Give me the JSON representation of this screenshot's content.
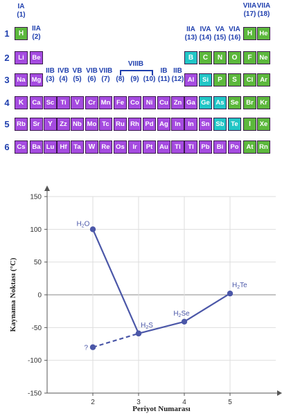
{
  "periodic_table": {
    "group_labels": [
      {
        "id": "g1",
        "roman": "IA",
        "num": "(1)"
      },
      {
        "id": "g2",
        "roman": "IIA",
        "num": "(2)"
      },
      {
        "id": "g3",
        "roman": "IIB",
        "num": "(3)"
      },
      {
        "id": "g4",
        "roman": "IVB",
        "num": "(4)"
      },
      {
        "id": "g5",
        "roman": "VB",
        "num": "(5)"
      },
      {
        "id": "g6",
        "roman": "VIB",
        "num": "(6)"
      },
      {
        "id": "g7",
        "roman": "VIIB",
        "num": "(7)"
      },
      {
        "id": "g8",
        "roman": "",
        "num": "(8)"
      },
      {
        "id": "g9",
        "roman": "",
        "num": "(9)"
      },
      {
        "id": "g10",
        "roman": "",
        "num": "(10)"
      },
      {
        "id": "g11",
        "roman": "IB",
        "num": "(11)"
      },
      {
        "id": "g12",
        "roman": "IIB",
        "num": "(12)"
      },
      {
        "id": "g13",
        "roman": "IIA",
        "num": "(13)"
      },
      {
        "id": "g14",
        "roman": "IVA",
        "num": "(14)"
      },
      {
        "id": "g15",
        "roman": "VA",
        "num": "(15)"
      },
      {
        "id": "g16",
        "roman": "VIA",
        "num": "(16)"
      },
      {
        "id": "g17",
        "roman": "VIIA",
        "num": "(17)"
      },
      {
        "id": "g18",
        "roman": "VIIA",
        "num": "(18)"
      }
    ],
    "viii_label": "VIIIB",
    "periods": [
      "1",
      "2",
      "3",
      "4",
      "5",
      "6"
    ],
    "rows": [
      [
        [
          "H",
          "nonmetal"
        ],
        null,
        null,
        null,
        null,
        null,
        null,
        null,
        null,
        null,
        null,
        null,
        null,
        null,
        null,
        null,
        [
          "H",
          "nonmetal"
        ],
        [
          "He",
          "nonmetal"
        ]
      ],
      [
        [
          "Li",
          "metal"
        ],
        [
          "Be",
          "metal"
        ],
        null,
        null,
        null,
        null,
        null,
        null,
        null,
        null,
        null,
        null,
        [
          "B",
          "metalloid"
        ],
        [
          "C",
          "nonmetal"
        ],
        [
          "N",
          "nonmetal"
        ],
        [
          "O",
          "nonmetal"
        ],
        [
          "F",
          "nonmetal"
        ],
        [
          "Ne",
          "nonmetal"
        ]
      ],
      [
        [
          "Na",
          "metal"
        ],
        [
          "Mg",
          "metal"
        ],
        null,
        null,
        null,
        null,
        null,
        null,
        null,
        null,
        null,
        null,
        [
          "Al",
          "metal"
        ],
        [
          "Si",
          "metalloid"
        ],
        [
          "P",
          "nonmetal"
        ],
        [
          "S",
          "nonmetal"
        ],
        [
          "Cl",
          "nonmetal"
        ],
        [
          "Ar",
          "nonmetal"
        ]
      ],
      [
        [
          "K",
          "metal"
        ],
        [
          "Ca",
          "metal"
        ],
        [
          "Sc",
          "metal"
        ],
        [
          "Ti",
          "metal"
        ],
        [
          "V",
          "metal"
        ],
        [
          "Cr",
          "metal"
        ],
        [
          "Mn",
          "metal"
        ],
        [
          "Fe",
          "metal"
        ],
        [
          "Co",
          "metal"
        ],
        [
          "Ni",
          "metal"
        ],
        [
          "Cu",
          "metal"
        ],
        [
          "Zn",
          "metal"
        ],
        [
          "Ga",
          "metal"
        ],
        [
          "Ge",
          "metalloid"
        ],
        [
          "As",
          "metalloid"
        ],
        [
          "Se",
          "nonmetal"
        ],
        [
          "Br",
          "nonmetal"
        ],
        [
          "Kr",
          "nonmetal"
        ]
      ],
      [
        [
          "Rb",
          "metal"
        ],
        [
          "Sr",
          "metal"
        ],
        [
          "Y",
          "metal"
        ],
        [
          "Zz",
          "metal"
        ],
        [
          "Nb",
          "metal"
        ],
        [
          "Mo",
          "metal"
        ],
        [
          "Tc",
          "metal"
        ],
        [
          "Ru",
          "metal"
        ],
        [
          "Rh",
          "metal"
        ],
        [
          "Pd",
          "metal"
        ],
        [
          "Ag",
          "metal"
        ],
        [
          "In",
          "metal"
        ],
        [
          "In",
          "metal"
        ],
        [
          "Sn",
          "metal"
        ],
        [
          "Sb",
          "metalloid"
        ],
        [
          "Te",
          "metalloid"
        ],
        [
          "I",
          "nonmetal"
        ],
        [
          "Xe",
          "nonmetal"
        ]
      ],
      [
        [
          "Cs",
          "metal"
        ],
        [
          "Ba",
          "metal"
        ],
        [
          "Lu",
          "metal"
        ],
        [
          "Hf",
          "metal"
        ],
        [
          "Ta",
          "metal"
        ],
        [
          "W",
          "metal"
        ],
        [
          "Re",
          "metal"
        ],
        [
          "Os",
          "metal"
        ],
        [
          "Ir",
          "metal"
        ],
        [
          "Pt",
          "metal"
        ],
        [
          "Au",
          "metal"
        ],
        [
          "Tl",
          "metal"
        ],
        [
          "Tl",
          "metal"
        ],
        [
          "Pb",
          "metal"
        ],
        [
          "Bi",
          "metal"
        ],
        [
          "Po",
          "metal"
        ],
        [
          "At",
          "nonmetal"
        ],
        [
          "Rn",
          "nonmetal"
        ]
      ]
    ],
    "colors": {
      "metal": "#a54be0",
      "nonmetal": "#5cb83c",
      "metalloid": "#21c6c6",
      "label": "#1f3fae"
    }
  },
  "chart_data": {
    "type": "line",
    "xlabel": "Periyot Numarası",
    "ylabel": "Kaynama Noktası (°C)",
    "xlim": [
      1,
      6
    ],
    "ylim": [
      -150,
      150
    ],
    "xticks": [
      2,
      3,
      4,
      5
    ],
    "yticks": [
      -150,
      -100,
      -50,
      0,
      50,
      100,
      150
    ],
    "grid": true,
    "series": [
      {
        "points": [
          {
            "x": 2,
            "y": 100,
            "label": "H",
            "sub": "2",
            "tail": "O"
          },
          {
            "x": 3,
            "y": -59,
            "label": "H",
            "sub": "2",
            "tail": "S"
          },
          {
            "x": 4,
            "y": -41,
            "label": "H",
            "sub": "2",
            "tail": "Se"
          },
          {
            "x": 5,
            "y": 2,
            "label": "H",
            "sub": "2",
            "tail": "Te"
          }
        ],
        "style": "solid"
      },
      {
        "points": [
          {
            "x": 2,
            "y": -80,
            "label": "?",
            "sub": "",
            "tail": ""
          },
          {
            "x": 3,
            "y": -59,
            "label": "",
            "sub": "",
            "tail": ""
          }
        ],
        "style": "dashed"
      }
    ],
    "colors": {
      "line": "#4b57a8",
      "grid": "#dedede",
      "zero": "#888888"
    }
  }
}
